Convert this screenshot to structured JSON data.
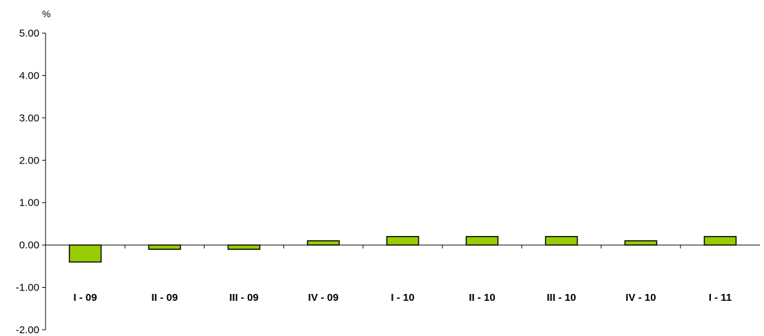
{
  "colors": {
    "bar_fill": "#99cc00",
    "bar_stroke": "#000000",
    "axis": "#000000"
  },
  "chart_data": {
    "type": "bar",
    "title": "",
    "xlabel": "",
    "ylabel": "%",
    "ylim": [
      -2,
      5
    ],
    "yticks": [
      5,
      4,
      3,
      2,
      1,
      0,
      -1,
      -2
    ],
    "ytick_labels": [
      "5.00",
      "4.00",
      "3.00",
      "2.00",
      "1.00",
      "0.00",
      "-1.00",
      "-2.00"
    ],
    "grid": false,
    "legend": "none",
    "categories": [
      "I - 09",
      "II - 09",
      "III - 09",
      "IV - 09",
      "I - 10",
      "II - 10",
      "III - 10",
      "IV - 10",
      "I - 11"
    ],
    "values": [
      -0.4,
      -0.1,
      -0.1,
      0.1,
      0.2,
      0.2,
      0.2,
      0.1,
      0.2
    ]
  }
}
